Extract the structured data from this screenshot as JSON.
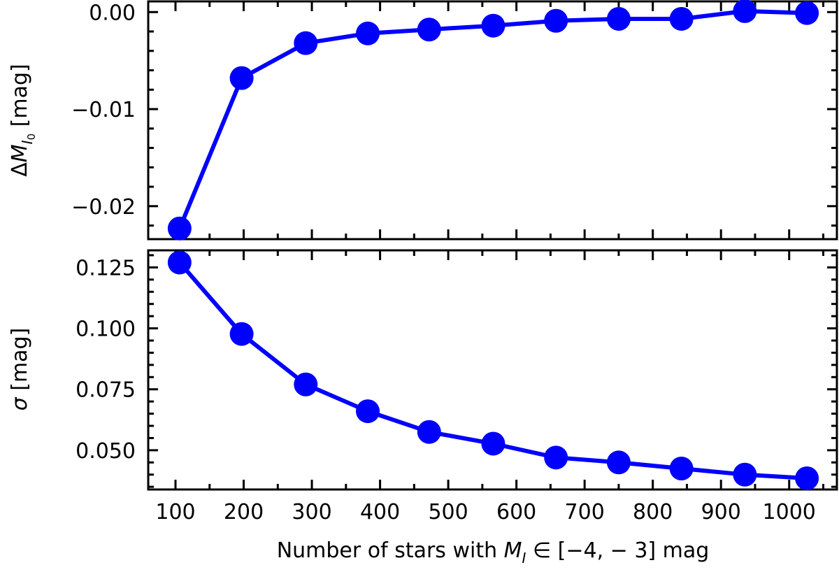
{
  "chart_data": [
    {
      "type": "line",
      "panel": "top",
      "title": "",
      "xlabel": "",
      "ylabel": "ΔM_I0 [mag]",
      "ylabel_parts": {
        "prefix": "Δ",
        "symbol": "M",
        "sub": "I",
        "subsub": "0",
        "unit": " [mag]"
      },
      "x": [
        106,
        197,
        291,
        382,
        472,
        566,
        658,
        750,
        842,
        935,
        1026
      ],
      "series": [
        {
          "name": "ΔM_I0",
          "color": "#0000ff",
          "marker": "circle",
          "values": [
            -0.0223,
            -0.0068,
            -0.0032,
            -0.0022,
            -0.0018,
            -0.0014,
            -0.0009,
            -0.0007,
            -0.0007,
            0.0001,
            -0.0001
          ]
        }
      ],
      "ylim": [
        -0.0234,
        0.0011
      ],
      "xlim": [
        60,
        1070
      ],
      "yticks": [
        0.0,
        -0.01,
        -0.02
      ],
      "ytick_labels": [
        "0.00",
        "−0.01",
        "−0.02"
      ],
      "yminor_step": 0.002,
      "grid": false,
      "legend": null
    },
    {
      "type": "line",
      "panel": "bottom",
      "title": "",
      "xlabel": "Number of stars with M_I ∈ [−4, −3] mag",
      "xlabel_parts": {
        "prefix": "Number of stars with ",
        "symbol": "M",
        "sub": "I",
        "suffix": " ∈ [−4, − 3] mag"
      },
      "ylabel": "σ [mag]",
      "x": [
        106,
        197,
        291,
        382,
        472,
        566,
        658,
        750,
        842,
        935,
        1026
      ],
      "series": [
        {
          "name": "σ",
          "color": "#0000ff",
          "marker": "circle",
          "values": [
            0.127,
            0.0977,
            0.077,
            0.066,
            0.0575,
            0.0527,
            0.047,
            0.045,
            0.0425,
            0.04,
            0.0385
          ]
        }
      ],
      "ylim": [
        0.0339,
        0.132
      ],
      "xlim": [
        60,
        1070
      ],
      "yticks": [
        0.125,
        0.1,
        0.075,
        0.05
      ],
      "ytick_labels": [
        "0.125",
        "0.100",
        "0.075",
        "0.050"
      ],
      "yminor_step": 0.005,
      "xticks": [
        100,
        200,
        300,
        400,
        500,
        600,
        700,
        800,
        900,
        1000
      ],
      "xtick_labels": [
        "100",
        "200",
        "300",
        "400",
        "500",
        "600",
        "700",
        "800",
        "900",
        "1000"
      ],
      "xminor_step": 50,
      "grid": false,
      "legend": null
    }
  ],
  "labels": {
    "top_ylabel_prefix": "Δ",
    "top_ylabel_symbol": "M",
    "top_ylabel_sub": "I",
    "top_ylabel_subsub": "0",
    "top_ylabel_unit": " [mag]",
    "bottom_ylabel_symbol": "σ",
    "bottom_ylabel_unit": " [mag]",
    "xlabel_prefix": "Number of stars with ",
    "xlabel_symbol": "M",
    "xlabel_sub": "I",
    "xlabel_suffix": " ∈ [−4, − 3] mag"
  },
  "style": {
    "line_color": "#0000ff",
    "axis_color": "#000000"
  }
}
